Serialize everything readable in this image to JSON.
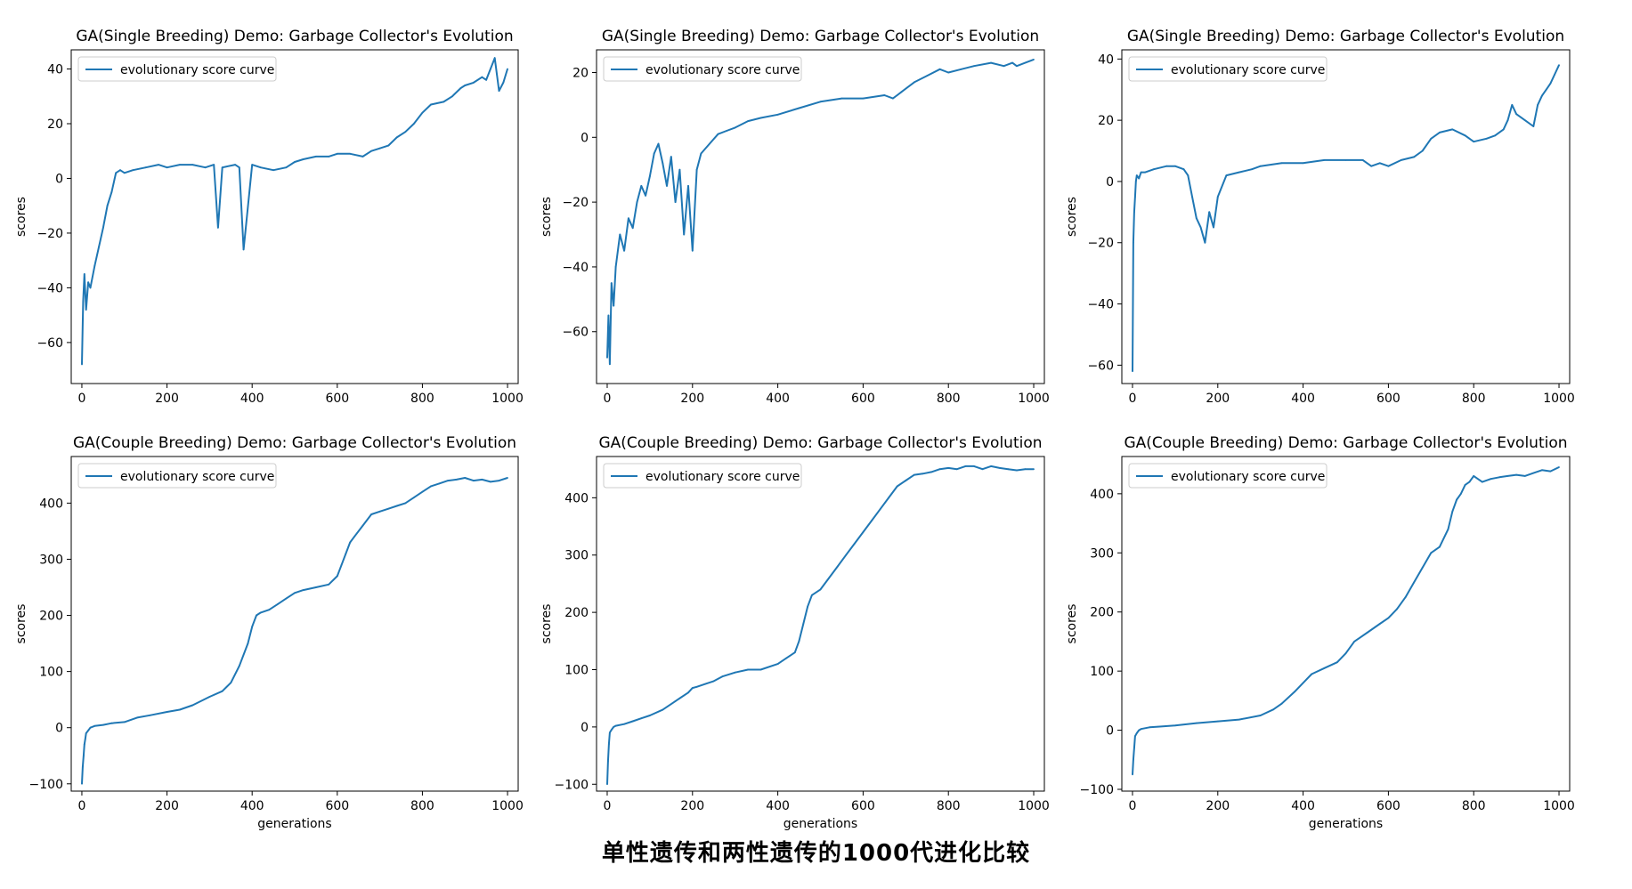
{
  "figure": {
    "title": "单性遗传和两性遗传的1000代进化比较"
  },
  "chart_data": [
    {
      "type": "line",
      "title": "GA(Single Breeding) Demo: Garbage Collector's Evolution",
      "xlabel": "",
      "ylabel": "scores",
      "xlim": [
        -25,
        1025
      ],
      "ylim": [
        -75,
        47
      ],
      "xticks": [
        0,
        200,
        400,
        600,
        800,
        1000
      ],
      "yticks": [
        -60,
        -40,
        -20,
        0,
        20,
        40
      ],
      "legend": "top-left",
      "color": "#1f77b4",
      "series": [
        {
          "name": "evolutionary score curve",
          "x": [
            0,
            3,
            6,
            10,
            15,
            20,
            30,
            40,
            50,
            60,
            70,
            80,
            90,
            100,
            120,
            150,
            180,
            200,
            230,
            260,
            290,
            310,
            320,
            330,
            360,
            370,
            380,
            400,
            420,
            450,
            480,
            500,
            520,
            550,
            580,
            600,
            630,
            660,
            680,
            700,
            720,
            740,
            760,
            780,
            800,
            820,
            850,
            870,
            890,
            900,
            920,
            940,
            950,
            960,
            970,
            975,
            980,
            990,
            1000
          ],
          "y": [
            -68,
            -45,
            -35,
            -48,
            -38,
            -40,
            -32,
            -25,
            -18,
            -10,
            -5,
            2,
            3,
            2,
            3,
            4,
            5,
            4,
            5,
            5,
            4,
            5,
            -18,
            4,
            5,
            4,
            -26,
            5,
            4,
            3,
            4,
            6,
            7,
            8,
            8,
            9,
            9,
            8,
            10,
            11,
            12,
            15,
            17,
            20,
            24,
            27,
            28,
            30,
            33,
            34,
            35,
            37,
            36,
            40,
            44,
            38,
            32,
            35,
            40
          ]
        }
      ]
    },
    {
      "type": "line",
      "title": "GA(Single Breeding) Demo: Garbage Collector's Evolution",
      "xlabel": "",
      "ylabel": "scores",
      "xlim": [
        -25,
        1025
      ],
      "ylim": [
        -76,
        27
      ],
      "xticks": [
        0,
        200,
        400,
        600,
        800,
        1000
      ],
      "yticks": [
        -60,
        -40,
        -20,
        0,
        20
      ],
      "legend": "top-left",
      "color": "#1f77b4",
      "series": [
        {
          "name": "evolutionary score curve",
          "x": [
            0,
            3,
            6,
            10,
            15,
            20,
            30,
            40,
            50,
            60,
            70,
            80,
            90,
            100,
            110,
            120,
            130,
            140,
            150,
            160,
            170,
            180,
            190,
            200,
            210,
            220,
            240,
            260,
            280,
            300,
            330,
            360,
            400,
            450,
            500,
            550,
            600,
            650,
            670,
            680,
            690,
            720,
            750,
            780,
            800,
            830,
            860,
            900,
            930,
            950,
            960,
            980,
            1000
          ],
          "y": [
            -68,
            -55,
            -70,
            -45,
            -52,
            -40,
            -30,
            -35,
            -25,
            -28,
            -20,
            -15,
            -18,
            -12,
            -5,
            -2,
            -8,
            -15,
            -6,
            -20,
            -10,
            -30,
            -15,
            -35,
            -10,
            -5,
            -2,
            1,
            2,
            3,
            5,
            6,
            7,
            9,
            11,
            12,
            12,
            13,
            12,
            13,
            14,
            17,
            19,
            21,
            20,
            21,
            22,
            23,
            22,
            23,
            22,
            23,
            24
          ]
        }
      ]
    },
    {
      "type": "line",
      "title": "GA(Single Breeding) Demo: Garbage Collector's Evolution",
      "xlabel": "",
      "ylabel": "scores",
      "xlim": [
        -25,
        1025
      ],
      "ylim": [
        -66,
        43
      ],
      "xticks": [
        0,
        200,
        400,
        600,
        800,
        1000
      ],
      "yticks": [
        -60,
        -40,
        -20,
        0,
        20,
        40
      ],
      "legend": "top-left",
      "color": "#1f77b4",
      "series": [
        {
          "name": "evolutionary score curve",
          "x": [
            0,
            2,
            4,
            6,
            8,
            10,
            15,
            20,
            30,
            50,
            80,
            100,
            120,
            130,
            140,
            150,
            160,
            170,
            180,
            190,
            200,
            220,
            250,
            280,
            300,
            350,
            400,
            450,
            500,
            540,
            560,
            580,
            600,
            630,
            660,
            680,
            700,
            720,
            750,
            780,
            800,
            830,
            850,
            870,
            880,
            890,
            900,
            920,
            940,
            950,
            960,
            970,
            980,
            990,
            1000
          ],
          "y": [
            -62,
            -20,
            -10,
            -5,
            0,
            2,
            1,
            3,
            3,
            4,
            5,
            5,
            4,
            2,
            -5,
            -12,
            -15,
            -20,
            -10,
            -15,
            -5,
            2,
            3,
            4,
            5,
            6,
            6,
            7,
            7,
            7,
            5,
            6,
            5,
            7,
            8,
            10,
            14,
            16,
            17,
            15,
            13,
            14,
            15,
            17,
            20,
            25,
            22,
            20,
            18,
            25,
            28,
            30,
            32,
            35,
            38
          ]
        }
      ]
    },
    {
      "type": "line",
      "title": "GA(Couple Breeding) Demo: Garbage Collector's Evolution",
      "xlabel": "generations",
      "ylabel": "scores",
      "xlim": [
        -25,
        1025
      ],
      "ylim": [
        -113,
        483
      ],
      "xticks": [
        0,
        200,
        400,
        600,
        800,
        1000
      ],
      "yticks": [
        -100,
        0,
        100,
        200,
        300,
        400
      ],
      "legend": "top-left",
      "color": "#1f77b4",
      "series": [
        {
          "name": "evolutionary score curve",
          "x": [
            0,
            2,
            4,
            6,
            8,
            10,
            15,
            20,
            30,
            50,
            70,
            100,
            130,
            160,
            200,
            230,
            260,
            300,
            330,
            350,
            370,
            390,
            400,
            410,
            420,
            440,
            460,
            480,
            500,
            520,
            550,
            580,
            600,
            610,
            620,
            630,
            640,
            660,
            680,
            700,
            720,
            740,
            760,
            780,
            800,
            820,
            840,
            860,
            880,
            900,
            920,
            940,
            960,
            980,
            1000
          ],
          "y": [
            -100,
            -70,
            -50,
            -30,
            -20,
            -10,
            -5,
            0,
            3,
            5,
            8,
            10,
            18,
            22,
            28,
            32,
            40,
            55,
            65,
            80,
            110,
            150,
            180,
            200,
            205,
            210,
            220,
            230,
            240,
            245,
            250,
            255,
            270,
            290,
            310,
            330,
            340,
            360,
            380,
            385,
            390,
            395,
            400,
            410,
            420,
            430,
            435,
            440,
            442,
            445,
            440,
            442,
            438,
            440,
            445
          ]
        }
      ]
    },
    {
      "type": "line",
      "title": "GA(Couple Breeding) Demo: Garbage Collector's Evolution",
      "xlabel": "generations",
      "ylabel": "scores",
      "xlim": [
        -25,
        1025
      ],
      "ylim": [
        -112,
        472
      ],
      "xticks": [
        0,
        200,
        400,
        600,
        800,
        1000
      ],
      "yticks": [
        -100,
        0,
        100,
        200,
        300,
        400
      ],
      "legend": "top-left",
      "color": "#1f77b4",
      "series": [
        {
          "name": "evolutionary score curve",
          "x": [
            0,
            2,
            4,
            6,
            10,
            15,
            20,
            40,
            60,
            80,
            100,
            130,
            160,
            190,
            200,
            210,
            230,
            250,
            270,
            300,
            330,
            360,
            400,
            420,
            440,
            450,
            460,
            470,
            480,
            500,
            520,
            540,
            560,
            580,
            600,
            620,
            640,
            660,
            680,
            700,
            720,
            740,
            760,
            780,
            800,
            820,
            840,
            860,
            880,
            900,
            920,
            940,
            960,
            980,
            1000
          ],
          "y": [
            -100,
            -60,
            -30,
            -10,
            -5,
            0,
            2,
            5,
            10,
            15,
            20,
            30,
            45,
            60,
            68,
            70,
            75,
            80,
            88,
            95,
            100,
            100,
            110,
            120,
            130,
            150,
            180,
            210,
            230,
            240,
            260,
            280,
            300,
            320,
            340,
            360,
            380,
            400,
            420,
            430,
            440,
            442,
            445,
            450,
            452,
            450,
            455,
            455,
            450,
            455,
            452,
            450,
            448,
            450,
            450
          ]
        }
      ]
    },
    {
      "type": "line",
      "title": "GA(Couple Breeding) Demo: Garbage Collector's Evolution",
      "xlabel": "generations",
      "ylabel": "scores",
      "xlim": [
        -25,
        1025
      ],
      "ylim": [
        -103,
        463
      ],
      "xticks": [
        0,
        200,
        400,
        600,
        800,
        1000
      ],
      "yticks": [
        -100,
        0,
        100,
        200,
        300,
        400
      ],
      "legend": "top-left",
      "color": "#1f77b4",
      "series": [
        {
          "name": "evolutionary score curve",
          "x": [
            0,
            2,
            4,
            6,
            10,
            15,
            20,
            40,
            60,
            100,
            150,
            200,
            250,
            300,
            330,
            350,
            380,
            400,
            420,
            450,
            480,
            500,
            520,
            550,
            580,
            600,
            620,
            640,
            660,
            680,
            700,
            720,
            740,
            750,
            760,
            770,
            780,
            790,
            800,
            820,
            840,
            860,
            880,
            900,
            920,
            940,
            960,
            980,
            1000
          ],
          "y": [
            -75,
            -50,
            -30,
            -10,
            -5,
            0,
            2,
            5,
            6,
            8,
            12,
            15,
            18,
            25,
            35,
            45,
            65,
            80,
            95,
            105,
            115,
            130,
            150,
            165,
            180,
            190,
            205,
            225,
            250,
            275,
            300,
            310,
            340,
            370,
            390,
            400,
            415,
            420,
            430,
            420,
            425,
            428,
            430,
            432,
            430,
            435,
            440,
            438,
            445
          ]
        }
      ]
    }
  ]
}
